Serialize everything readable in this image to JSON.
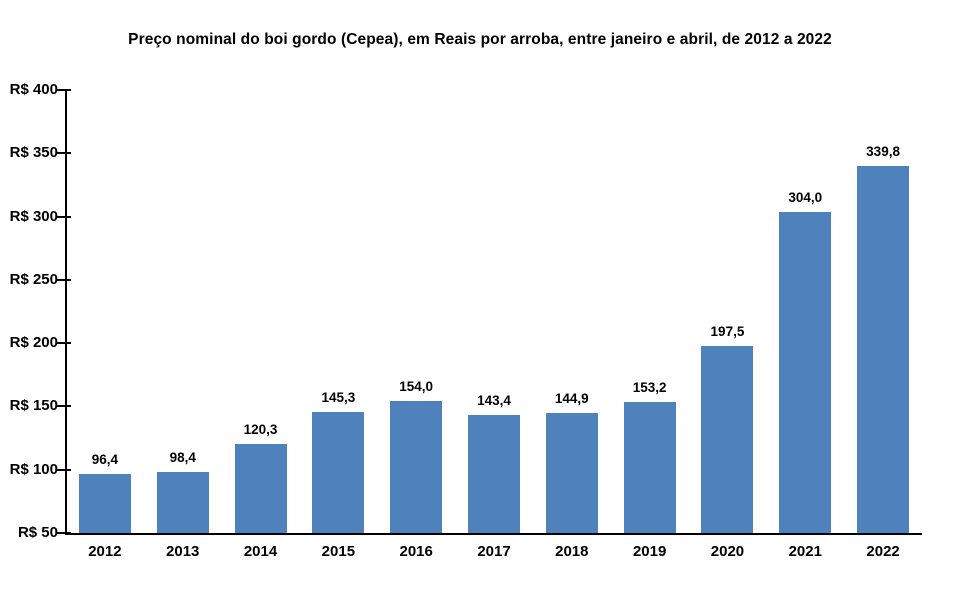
{
  "title": "Preço nominal do boi gordo (Cepea), em Reais por arroba, entre janeiro e abril, de 2012 a 2022",
  "colors": {
    "bar": "#4F81BD",
    "axis": "#000000",
    "text": "#000000",
    "background": "#FFFFFF"
  },
  "chart_data": {
    "type": "bar",
    "title": "Preço nominal do boi gordo (Cepea), em Reais por arroba, entre janeiro e abril, de 2012 a 2022",
    "categories": [
      "2012",
      "2013",
      "2014",
      "2015",
      "2016",
      "2017",
      "2018",
      "2019",
      "2020",
      "2021",
      "2022"
    ],
    "values": [
      96.4,
      98.4,
      120.3,
      145.3,
      154.0,
      143.4,
      144.9,
      153.2,
      197.5,
      304.0,
      339.8
    ],
    "value_labels": [
      "96,4",
      "98,4",
      "120,3",
      "145,3",
      "154,0",
      "143,4",
      "144,9",
      "153,2",
      "197,5",
      "304,0",
      "339,8"
    ],
    "xlabel": "",
    "ylabel": "",
    "ylim": [
      50,
      400
    ],
    "ytick_step": 50,
    "ytick_labels": [
      "R$ 50",
      "R$ 100",
      "R$ 150",
      "R$ 200",
      "R$ 250",
      "R$ 300",
      "R$ 350",
      "R$ 400"
    ],
    "currency_prefix": "R$",
    "grid": false,
    "legend": null,
    "bar_color": "#4F81BD"
  }
}
